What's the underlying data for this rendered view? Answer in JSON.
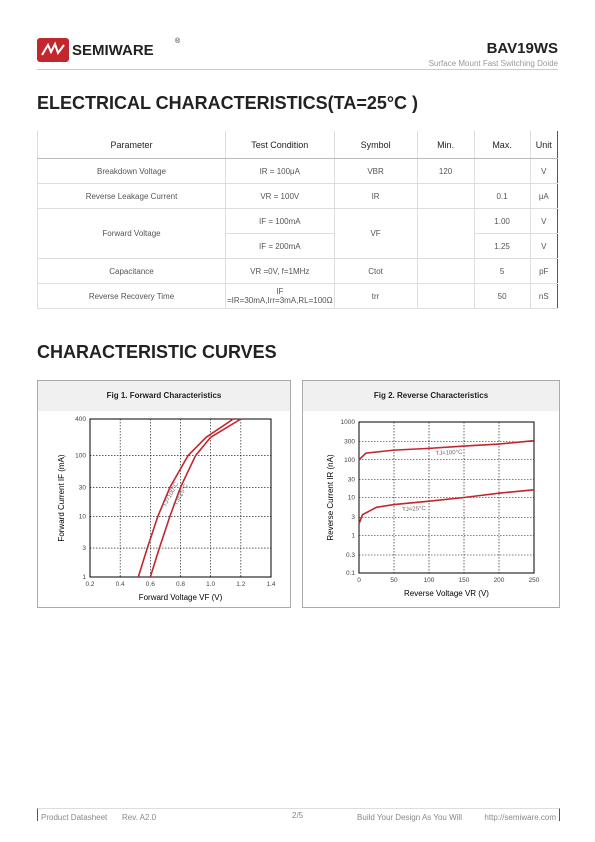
{
  "header": {
    "logo": "SEMIWARE",
    "registered": "®",
    "part": "BAV19WS",
    "subtitle": "Surface Mount Fast Switching Doide"
  },
  "section1": "ELECTRICAL CHARACTERISTICS(TA=25°C )",
  "table": {
    "header": [
      "Parameter",
      "Test Condition",
      "Symbol",
      "Min.",
      "Max.",
      "Unit"
    ],
    "rows": [
      {
        "parameter": "Breakdown Voltage",
        "condition": "IR = 100μA",
        "symbol": "VBR",
        "min": "120",
        "unit": "V"
      },
      {
        "parameter": "Reverse Leakage Current",
        "condition": "VR = 100V",
        "symbol": "IR",
        "max": "0.1",
        "unit": "μA"
      },
      {
        "parameter": "Forward Voltage",
        "condition": "IF = 100mA",
        "symbol": "VF",
        "max": "1.00",
        "unit": "V"
      },
      {
        "condition": "IF = 200mA",
        "max": "1.25",
        "unit": "V"
      },
      {
        "parameter": "Capacitance",
        "condition": "VR =0V, f=1MHz",
        "symbol": "Ctot",
        "max": "5",
        "unit": "pF"
      },
      {
        "parameter": "Reverse Recovery Time",
        "condition": "IF =IR=30mA,Irr=3mA,RL=100Ω",
        "symbol": "trr",
        "max": "50",
        "unit": "nS"
      }
    ]
  },
  "section2": "CHARACTERISTIC CURVES",
  "chart_data": [
    {
      "type": "line",
      "title": "Fig 1. Forward Characteristics",
      "x_label": "Forward Voltage VF (V)",
      "y_label": "Forward Current IF (mA)",
      "xlim": [
        0.2,
        1.4
      ],
      "ylim": [
        1,
        400
      ],
      "log_y": true,
      "grid": true,
      "xticks": [
        0.2,
        0.4,
        0.6,
        0.8,
        {
          "value": 1,
          "label": "1.0"
        },
        1.2,
        1.4
      ],
      "yticks": [
        1,
        3,
        10,
        30,
        100,
        400
      ],
      "series": [
        {
          "name": "TJ=100°C",
          "color": "#c1272d",
          "x": [
            0.52,
            0.58,
            0.65,
            0.73,
            0.85,
            0.97,
            1.15
          ],
          "values": [
            1,
            3,
            10,
            30,
            100,
            200,
            400
          ]
        },
        {
          "name": "TJ=25°C",
          "color": "#c1272d",
          "x": [
            0.6,
            0.66,
            0.73,
            0.8,
            0.9,
            1.0,
            1.2
          ],
          "values": [
            1,
            3,
            10,
            30,
            100,
            200,
            400
          ]
        }
      ]
    },
    {
      "type": "line",
      "title": "Fig 2. Reverse Characteristics",
      "x_label": "Reverse Voltage VR (V)",
      "y_label": "Reverse Current IR (nA)",
      "xlim": [
        0,
        250
      ],
      "ylim": [
        0.1,
        1000
      ],
      "log_y": true,
      "grid": true,
      "xticks": [
        0,
        50,
        100,
        150,
        200,
        250
      ],
      "yticks": [
        0.1,
        0.3,
        1,
        3,
        10,
        30,
        100,
        300,
        1000
      ],
      "series": [
        {
          "name": "TJ=100°C",
          "color": "#c1272d",
          "x": [
            0,
            10,
            50,
            100,
            150,
            200,
            250
          ],
          "values": [
            100,
            150,
            180,
            200,
            230,
            260,
            320
          ]
        },
        {
          "name": "TJ=25°C",
          "color": "#c1272d",
          "x": [
            0,
            5,
            25,
            50,
            100,
            150,
            200,
            250
          ],
          "values": [
            2,
            3.5,
            5.5,
            6.5,
            8,
            10,
            13,
            16
          ]
        }
      ]
    }
  ],
  "footer": {
    "doc": "Product Datasheet",
    "rev": "Rev. A2.0",
    "page": "2/5",
    "slogan": "Build Your Design As You Will",
    "url": "http://semiware.com"
  }
}
